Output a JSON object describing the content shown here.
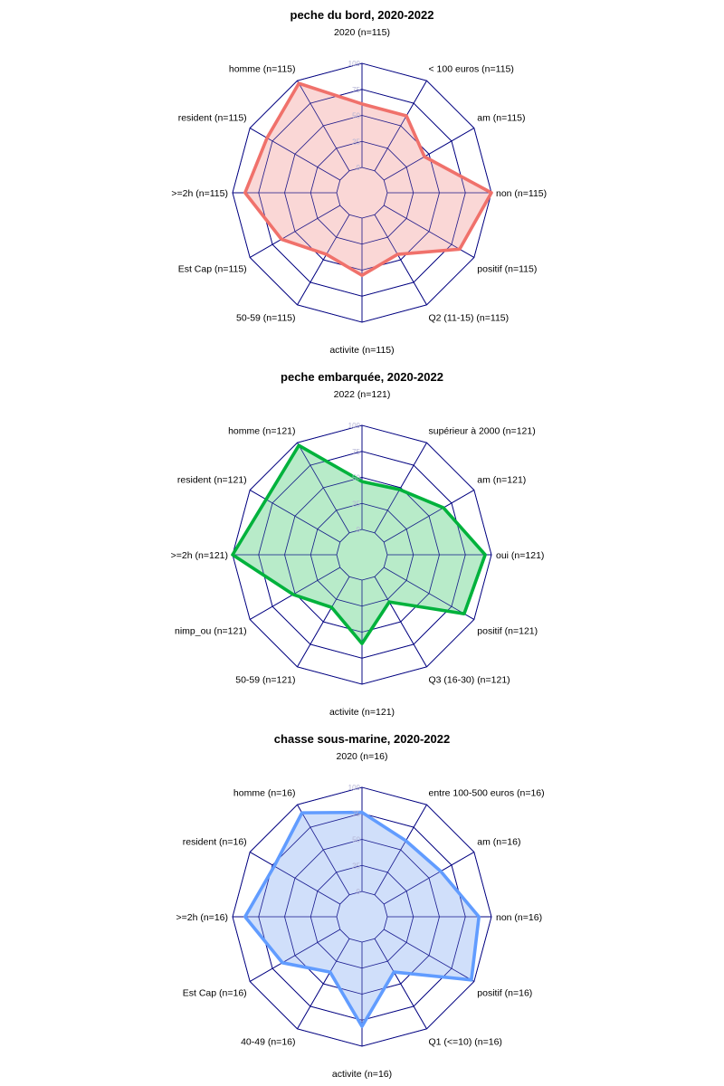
{
  "chart_data": [
    {
      "type": "radar",
      "title": "peche du bord, 2020-2022",
      "axes": [
        "2020 (n=115)",
        "< 100 euros (n=115)",
        "am (n=115)",
        "non (n=115)",
        "positif (n=115)",
        "Q2 (11-15) (n=115)",
        "activite (n=115)",
        "50-59 (n=115)",
        "Est Cap (n=115)",
        ">=2h (n=115)",
        "resident (n=115)",
        "homme (n=115)"
      ],
      "values": [
        61,
        61,
        45,
        100,
        84,
        44,
        55,
        44,
        65,
        88,
        81,
        97
      ],
      "rlim": [
        0,
        100
      ],
      "ticks": [
        "0",
        "25",
        "50",
        "75",
        "100"
      ],
      "color": "#f0716b",
      "fill": "#fad3d1"
    },
    {
      "type": "radar",
      "title": "peche embarquée, 2020-2022",
      "axes": [
        "2022 (n=121)",
        "supérieur à 2000 (n=121)",
        "am (n=121)",
        "oui (n=121)",
        "positif (n=121)",
        "Q3 (16-30) (n=121)",
        "activite (n=121)",
        "50-59 (n=121)",
        "nimp_ou (n=121)",
        ">=2h (n=121)",
        "resident (n=121)",
        "homme (n=121)"
      ],
      "values": [
        46,
        48,
        66,
        94,
        89,
        28,
        61,
        34,
        52,
        100,
        82,
        97
      ],
      "rlim": [
        0,
        100
      ],
      "ticks": [
        "0",
        "25",
        "50",
        "75",
        "100"
      ],
      "color": "#00b23c",
      "fill": "#b0e9c3"
    },
    {
      "type": "radar",
      "title": "chasse sous-marine, 2020-2022",
      "axes": [
        "2020 (n=16)",
        "entre 100-500 euros (n=16)",
        "am (n=16)",
        "non (n=16)",
        "positif (n=16)",
        "Q1 (<=10) (n=16)",
        "activite (n=16)",
        "40-49 (n=16)",
        "Est Cap (n=16)",
        ">=2h (n=16)",
        "resident (n=16)",
        "homme (n=16)"
      ],
      "values": [
        76,
        60,
        63,
        88,
        97,
        37,
        81,
        37,
        64,
        88,
        73,
        91
      ],
      "rlim": [
        0,
        100
      ],
      "ticks": [
        "0",
        "25",
        "50",
        "75",
        "100"
      ],
      "color": "#619cff",
      "fill": "#cbdcfa"
    }
  ]
}
